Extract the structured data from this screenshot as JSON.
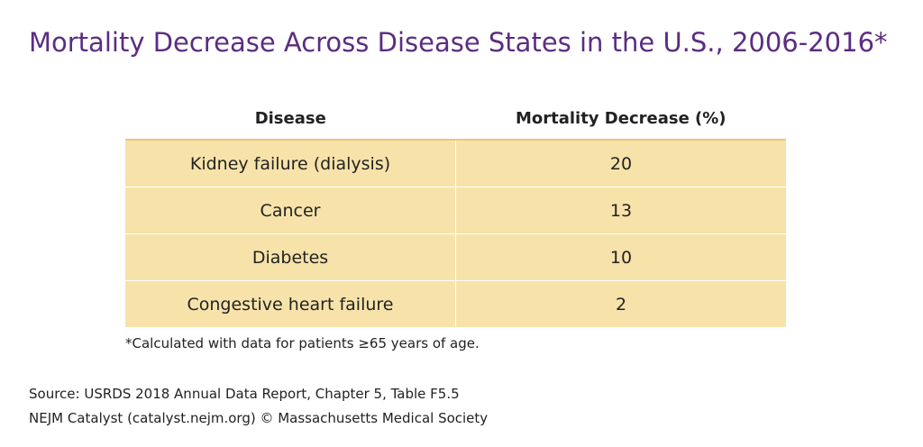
{
  "header": {
    "title": "Mortality Decrease Across Disease States in the U.S., 2006-2016*"
  },
  "table": {
    "columns": [
      "Disease",
      "Mortality Decrease (%)"
    ],
    "rows": [
      [
        "Kidney failure (dialysis)",
        20
      ],
      [
        "Cancer",
        13
      ],
      [
        "Diabetes",
        10
      ],
      [
        "Congestive heart failure",
        2
      ]
    ]
  },
  "footnote": "*Calculated with data for patients ≥65 years of age.",
  "source": [
    "Source: USRDS 2018 Annual Data Report, Chapter 5, Table F5.5",
    "NEJM Catalyst (catalyst.nejm.org) © Massachusetts Medical Society"
  ]
}
